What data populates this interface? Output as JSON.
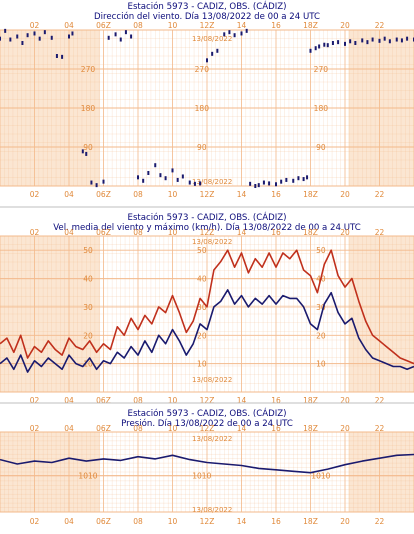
{
  "colors": {
    "night": "#fbe6d2",
    "day": "#ffffff",
    "grid": "#f3b98b",
    "axis_text": "#e0893a",
    "title": "#0b0b7a",
    "series_dark": "#1a1a6e",
    "series_red": "#c0301c",
    "separator": "#bfbfbf"
  },
  "chart_data": [
    {
      "type": "scatter",
      "title": "Estación 5973 - CADIZ, OBS. (CÁDIZ)",
      "subtitle": "Dirección del viento. Día 13/08/2022 de 00 a 24 UTC",
      "date_label": "13/08/2022",
      "x_ticks": [
        "02",
        "04",
        "06Z",
        "08",
        "10",
        "12Z",
        "14",
        "16",
        "18Z",
        "20",
        "22"
      ],
      "xlim": [
        0,
        24
      ],
      "ylim": [
        0,
        360
      ],
      "y_ticks": [
        "90",
        "180",
        "270"
      ],
      "series": [
        {
          "points": [
            [
              0.0,
              340
            ],
            [
              0.3,
              358
            ],
            [
              0.6,
              338
            ],
            [
              1.0,
              345
            ],
            [
              1.3,
              330
            ],
            [
              1.6,
              348
            ],
            [
              2.0,
              352
            ],
            [
              2.3,
              340
            ],
            [
              2.6,
              355
            ],
            [
              3.0,
              342
            ],
            [
              3.3,
              300
            ],
            [
              3.6,
              298
            ],
            [
              4.0,
              345
            ],
            [
              4.2,
              352
            ],
            [
              4.8,
              80
            ],
            [
              5.0,
              74
            ],
            [
              5.3,
              8
            ],
            [
              5.6,
              2
            ],
            [
              6.0,
              10
            ],
            [
              6.3,
              342
            ],
            [
              6.7,
              350
            ],
            [
              7.0,
              338
            ],
            [
              7.3,
              355
            ],
            [
              7.6,
              345
            ],
            [
              8.0,
              20
            ],
            [
              8.3,
              12
            ],
            [
              8.6,
              30
            ],
            [
              9.0,
              48
            ],
            [
              9.3,
              25
            ],
            [
              9.6,
              18
            ],
            [
              10.0,
              36
            ],
            [
              10.3,
              14
            ],
            [
              10.6,
              22
            ],
            [
              11.0,
              8
            ],
            [
              11.3,
              5
            ],
            [
              11.6,
              6
            ],
            [
              12.0,
              290
            ],
            [
              12.3,
              305
            ],
            [
              12.6,
              312
            ],
            [
              13.0,
              350
            ],
            [
              13.3,
              355
            ],
            [
              13.6,
              348
            ],
            [
              14.0,
              352
            ],
            [
              14.3,
              358
            ],
            [
              14.5,
              5
            ],
            [
              14.8,
              0
            ],
            [
              15.0,
              2
            ],
            [
              15.3,
              8
            ],
            [
              15.6,
              6
            ],
            [
              16.0,
              4
            ],
            [
              16.3,
              10
            ],
            [
              16.6,
              14
            ],
            [
              17.0,
              12
            ],
            [
              17.3,
              18
            ],
            [
              17.6,
              16
            ],
            [
              17.8,
              20
            ],
            [
              18.0,
              312
            ],
            [
              18.3,
              318
            ],
            [
              18.5,
              322
            ],
            [
              18.8,
              326
            ],
            [
              19.0,
              325
            ],
            [
              19.3,
              330
            ],
            [
              19.6,
              332
            ],
            [
              20.0,
              328
            ],
            [
              20.3,
              334
            ],
            [
              20.6,
              330
            ],
            [
              21.0,
              336
            ],
            [
              21.3,
              332
            ],
            [
              21.6,
              338
            ],
            [
              22.0,
              335
            ],
            [
              22.3,
              340
            ],
            [
              22.6,
              334
            ],
            [
              23.0,
              338
            ],
            [
              23.3,
              336
            ],
            [
              23.6,
              340
            ],
            [
              24.0,
              338
            ]
          ]
        }
      ]
    },
    {
      "type": "line",
      "title": "Estación 5973 - CADIZ, OBS. (CÁDIZ)",
      "subtitle": "Vel. media del viento y máximo (km/h). Día 13/08/2022 de 00 a 24 UTC",
      "date_label": "13/08/2022",
      "x_ticks": [
        "02",
        "04",
        "06Z",
        "08",
        "10",
        "12Z",
        "14",
        "16",
        "18Z",
        "20",
        "22"
      ],
      "xlim": [
        0,
        24
      ],
      "ylim": [
        0,
        55
      ],
      "y_ticks": [
        "10",
        "20",
        "30",
        "40",
        "50"
      ],
      "series": [
        {
          "color_role": "max",
          "x": [
            0.0,
            0.4,
            0.8,
            1.2,
            1.6,
            2.0,
            2.4,
            2.8,
            3.2,
            3.6,
            4.0,
            4.4,
            4.8,
            5.2,
            5.6,
            6.0,
            6.4,
            6.8,
            7.2,
            7.6,
            8.0,
            8.4,
            8.8,
            9.2,
            9.6,
            10.0,
            10.4,
            10.8,
            11.2,
            11.6,
            12.0,
            12.4,
            12.8,
            13.2,
            13.6,
            14.0,
            14.4,
            14.8,
            15.2,
            15.6,
            16.0,
            16.4,
            16.8,
            17.2,
            17.6,
            18.0,
            18.4,
            18.8,
            19.2,
            19.6,
            20.0,
            20.4,
            20.8,
            21.2,
            21.6,
            22.0,
            22.4,
            22.8,
            23.2,
            23.6,
            24.0
          ],
          "values": [
            17,
            19,
            14,
            20,
            12,
            16,
            14,
            18,
            15,
            13,
            19,
            16,
            15,
            18,
            14,
            17,
            15,
            23,
            20,
            26,
            22,
            27,
            24,
            30,
            28,
            34,
            28,
            21,
            25,
            33,
            30,
            43,
            46,
            50,
            44,
            49,
            42,
            47,
            44,
            49,
            44,
            49,
            47,
            50,
            43,
            41,
            35,
            45,
            50,
            41,
            37,
            40,
            32,
            25,
            20,
            18,
            16,
            14,
            12,
            11,
            10
          ]
        },
        {
          "color_role": "mean",
          "x": [
            0.0,
            0.4,
            0.8,
            1.2,
            1.6,
            2.0,
            2.4,
            2.8,
            3.2,
            3.6,
            4.0,
            4.4,
            4.8,
            5.2,
            5.6,
            6.0,
            6.4,
            6.8,
            7.2,
            7.6,
            8.0,
            8.4,
            8.8,
            9.2,
            9.6,
            10.0,
            10.4,
            10.8,
            11.2,
            11.6,
            12.0,
            12.4,
            12.8,
            13.2,
            13.6,
            14.0,
            14.4,
            14.8,
            15.2,
            15.6,
            16.0,
            16.4,
            16.8,
            17.2,
            17.6,
            18.0,
            18.4,
            18.8,
            19.2,
            19.6,
            20.0,
            20.4,
            20.8,
            21.2,
            21.6,
            22.0,
            22.4,
            22.8,
            23.2,
            23.6,
            24.0
          ],
          "values": [
            10,
            12,
            8,
            13,
            7,
            11,
            9,
            12,
            10,
            8,
            13,
            10,
            9,
            12,
            8,
            11,
            10,
            14,
            12,
            16,
            13,
            18,
            14,
            20,
            17,
            22,
            18,
            13,
            17,
            24,
            22,
            30,
            32,
            36,
            31,
            34,
            30,
            33,
            31,
            34,
            31,
            34,
            33,
            33,
            30,
            24,
            22,
            31,
            35,
            28,
            24,
            26,
            19,
            15,
            12,
            11,
            10,
            9,
            9,
            8,
            9
          ]
        }
      ]
    },
    {
      "type": "line",
      "title": "Estación 5973 - CADIZ, OBS. (CÁDIZ)",
      "subtitle": "Presión. Día 13/08/2022 de 00 a 24 UTC",
      "date_label": "13/08/2022",
      "x_ticks": [
        "02",
        "04",
        "06Z",
        "08",
        "10",
        "12Z",
        "14",
        "16",
        "18Z",
        "20",
        "22"
      ],
      "xlim": [
        0,
        24
      ],
      "ylim": [
        1005,
        1016
      ],
      "y_ticks": [
        "1010"
      ],
      "series": [
        {
          "x": [
            0,
            1,
            2,
            3,
            4,
            5,
            6,
            7,
            8,
            9,
            10,
            11,
            12,
            13,
            14,
            15,
            16,
            17,
            18,
            19,
            20,
            21,
            22,
            23,
            24
          ],
          "values": [
            1012.2,
            1011.6,
            1012.0,
            1011.8,
            1012.4,
            1012.0,
            1012.3,
            1012.1,
            1012.6,
            1012.3,
            1012.8,
            1012.2,
            1011.8,
            1011.6,
            1011.4,
            1011.0,
            1010.8,
            1010.6,
            1010.4,
            1010.9,
            1011.5,
            1012.0,
            1012.4,
            1012.8,
            1012.9
          ]
        }
      ]
    }
  ]
}
